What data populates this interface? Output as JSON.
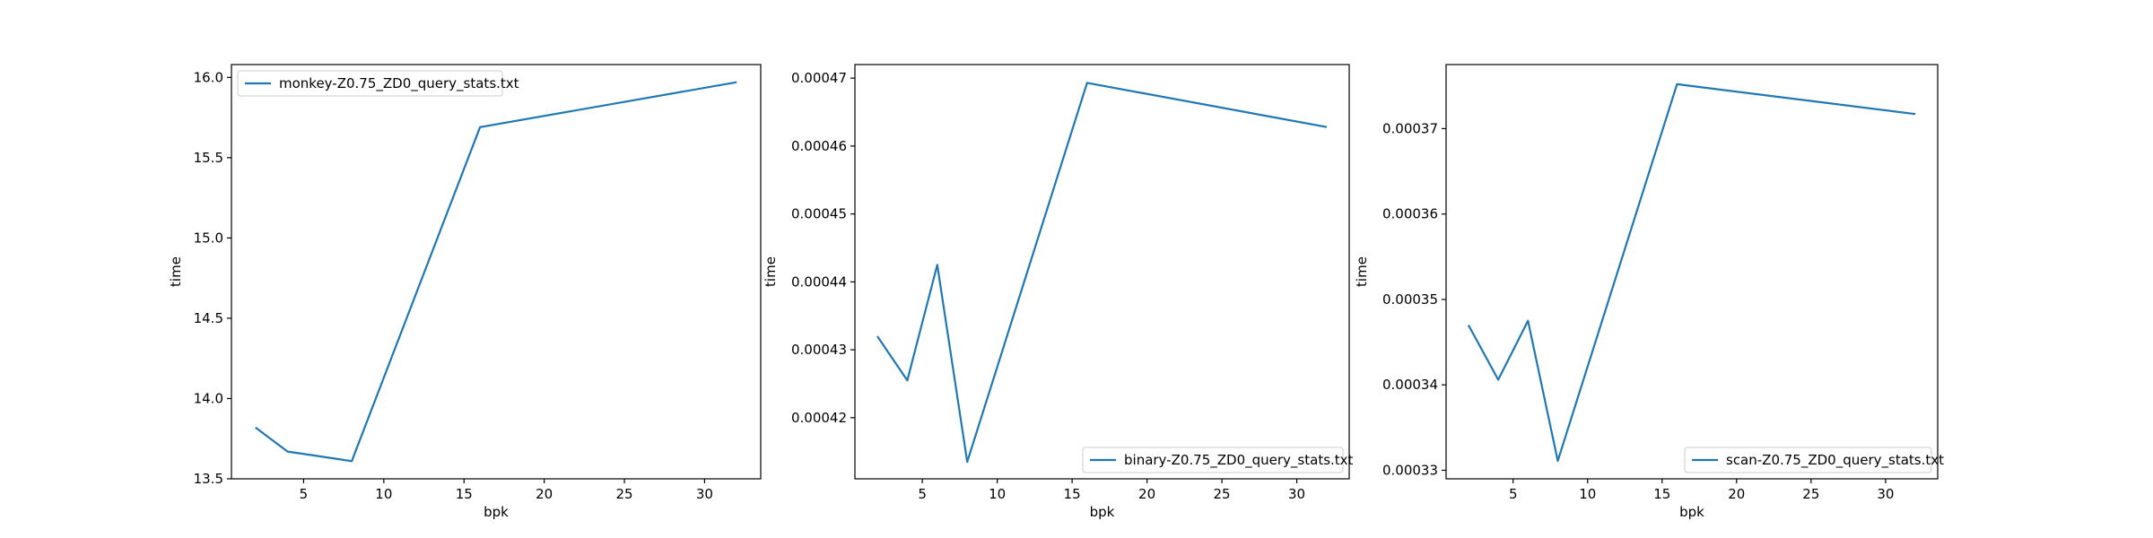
{
  "chart_data": [
    {
      "type": "line",
      "xlabel": "bpk",
      "ylabel": "time",
      "xlim": [
        0.5,
        33.5
      ],
      "ylim": [
        13.5,
        16.08
      ],
      "xticks": [
        5,
        10,
        15,
        20,
        25,
        30
      ],
      "xtick_labels": [
        "5",
        "10",
        "15",
        "20",
        "25",
        "30"
      ],
      "yticks": [
        13.5,
        14.0,
        14.5,
        15.0,
        15.5,
        16.0
      ],
      "ytick_labels": [
        "13.5",
        "14.0",
        "14.5",
        "15.0",
        "15.5",
        "16.0"
      ],
      "legend_position": "upper left",
      "series": [
        {
          "name": "monkey-Z0.75_ZD0_query_stats.txt",
          "color": "#1f77b4",
          "x": [
            2,
            4,
            6,
            8,
            16,
            32
          ],
          "values": [
            13.82,
            13.67,
            13.64,
            13.61,
            15.69,
            15.97
          ]
        }
      ]
    },
    {
      "type": "line",
      "xlabel": "bpk",
      "ylabel": "time",
      "xlim": [
        0.5,
        33.5
      ],
      "ylim": [
        0.000411,
        0.000472
      ],
      "xticks": [
        5,
        10,
        15,
        20,
        25,
        30
      ],
      "xtick_labels": [
        "5",
        "10",
        "15",
        "20",
        "25",
        "30"
      ],
      "yticks": [
        0.00042,
        0.00043,
        0.00044,
        0.00045,
        0.00046,
        0.00047
      ],
      "ytick_labels": [
        "0.00042",
        "0.00043",
        "0.00044",
        "0.00045",
        "0.00046",
        "0.00047"
      ],
      "legend_position": "lower right",
      "series": [
        {
          "name": "binary-Z0.75_ZD0_query_stats.txt",
          "color": "#1f77b4",
          "x": [
            2,
            4,
            6,
            8,
            16,
            32
          ],
          "values": [
            0.000432,
            0.0004255,
            0.0004425,
            0.0004135,
            0.0004693,
            0.0004628
          ]
        }
      ]
    },
    {
      "type": "line",
      "xlabel": "bpk",
      "ylabel": "time",
      "xlim": [
        0.5,
        33.5
      ],
      "ylim": [
        0.000329,
        0.0003775
      ],
      "xticks": [
        5,
        10,
        15,
        20,
        25,
        30
      ],
      "xtick_labels": [
        "5",
        "10",
        "15",
        "20",
        "25",
        "30"
      ],
      "yticks": [
        0.00033,
        0.00034,
        0.00035,
        0.00036,
        0.00037
      ],
      "ytick_labels": [
        "0.00033",
        "0.00034",
        "0.00035",
        "0.00036",
        "0.00037"
      ],
      "legend_position": "lower right",
      "series": [
        {
          "name": "scan-Z0.75_ZD0_query_stats.txt",
          "color": "#1f77b4",
          "x": [
            2,
            4,
            6,
            8,
            16,
            32
          ],
          "values": [
            0.000347,
            0.0003406,
            0.0003475,
            0.0003311,
            0.0003752,
            0.0003717
          ]
        }
      ]
    }
  ]
}
